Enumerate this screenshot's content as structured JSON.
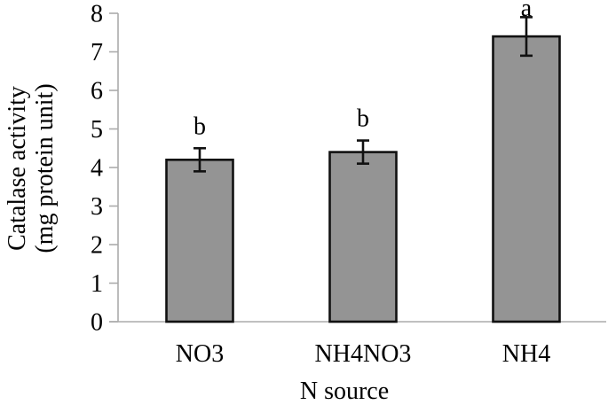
{
  "chart_data": {
    "type": "bar",
    "title": "",
    "categories": [
      "NO3",
      "NH4NO3",
      "NH4"
    ],
    "values": [
      4.2,
      4.4,
      7.4
    ],
    "errors": [
      0.3,
      0.3,
      0.5
    ],
    "sig_letters": [
      "b",
      "b",
      "a"
    ],
    "xlabel": "N source",
    "ylabel_lines": [
      "Catalase activity",
      "(mg protein unit)"
    ],
    "ylim": [
      0,
      8
    ],
    "ytick_step": 1,
    "ytick_labels": [
      "0",
      "1",
      "2",
      "3",
      "4",
      "5",
      "6",
      "7",
      "8"
    ],
    "grid": false,
    "legend": false,
    "colors": {
      "bar_fill": "#949494",
      "bar_border": "#111111",
      "error_bar": "#111111",
      "axis_line": "#ababab",
      "text": "#000000"
    }
  }
}
